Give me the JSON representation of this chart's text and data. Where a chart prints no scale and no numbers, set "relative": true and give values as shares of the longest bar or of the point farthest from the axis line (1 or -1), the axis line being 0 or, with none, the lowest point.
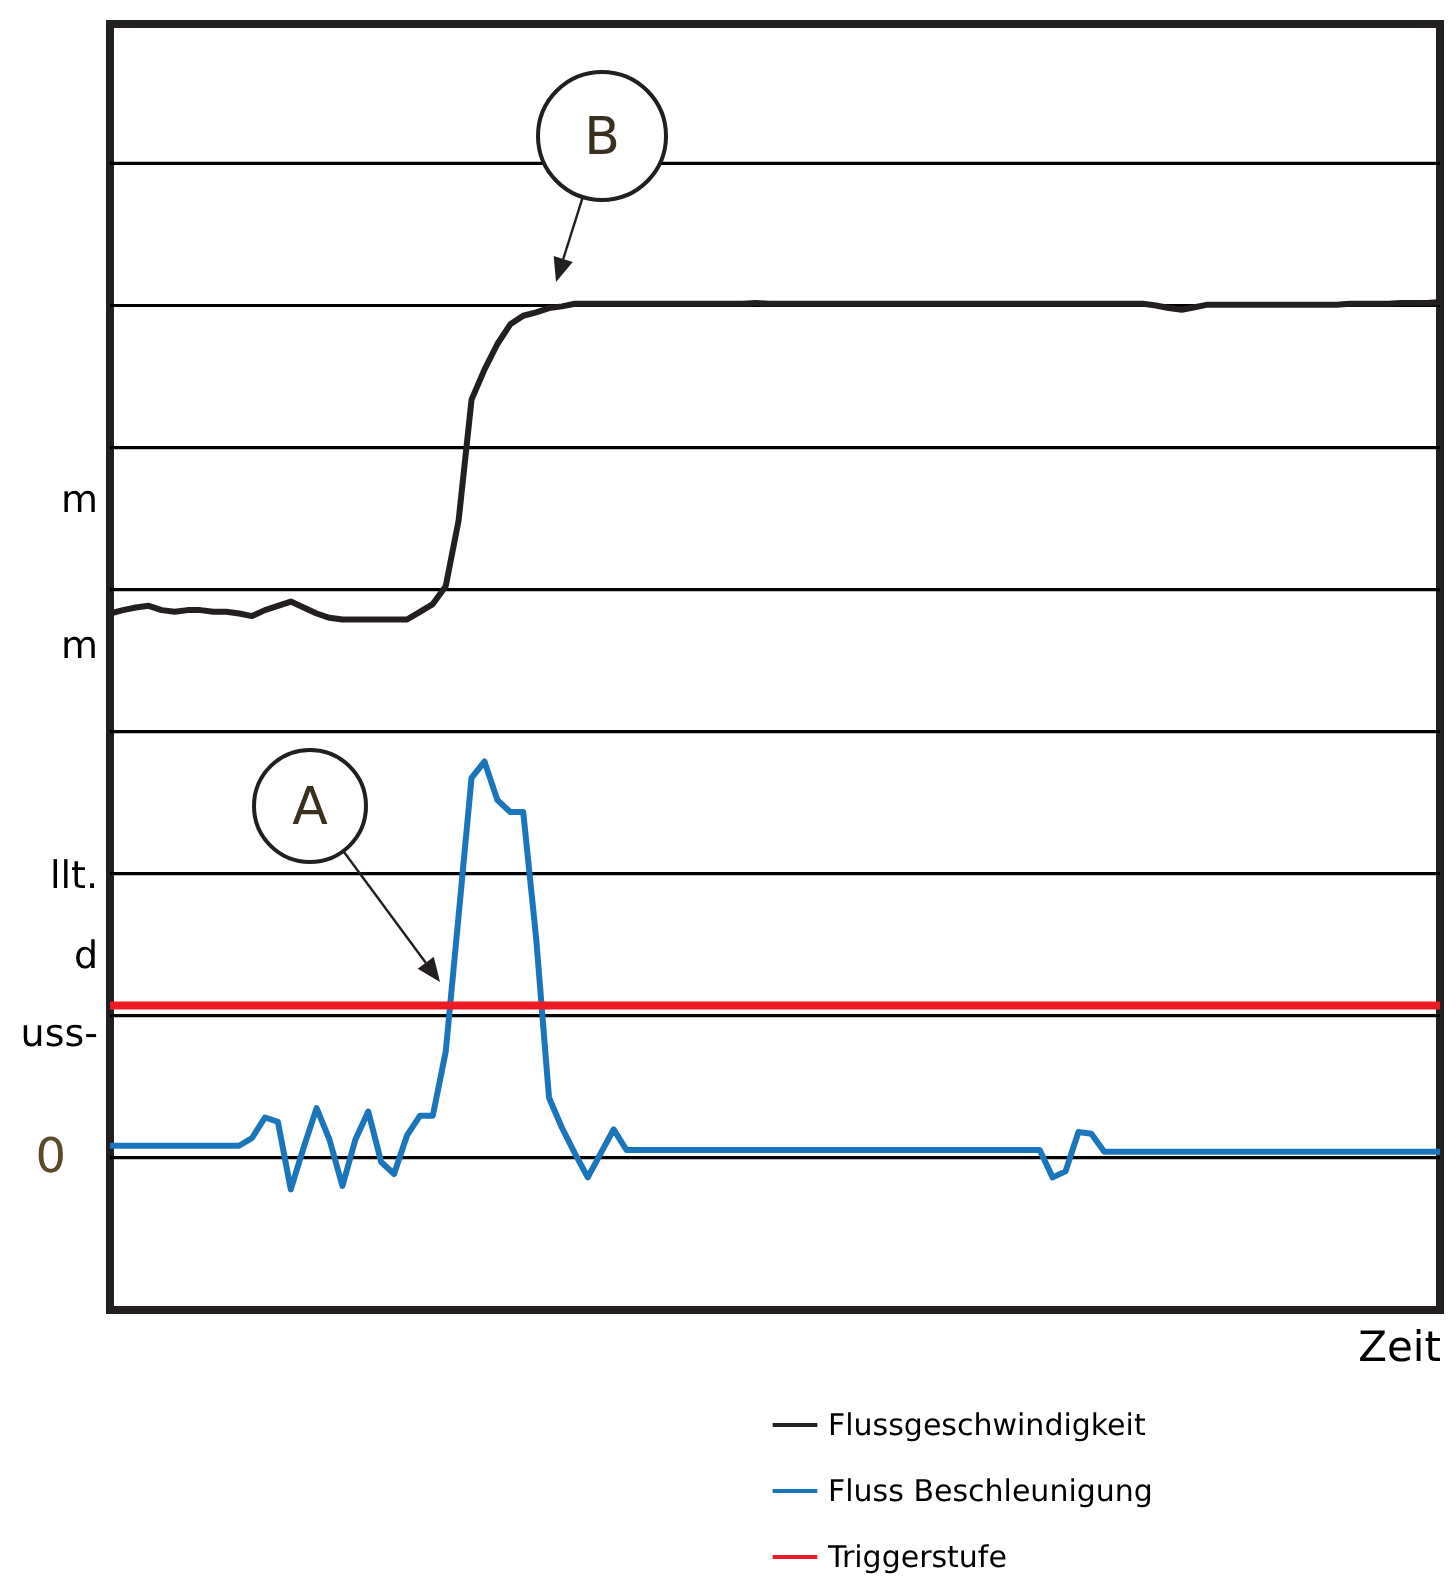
{
  "chart_data": {
    "type": "line",
    "relative": true,
    "xlabel": "Zeit",
    "categories": [
      null,
      null,
      null,
      null,
      null,
      null,
      null,
      null,
      null,
      null,
      null,
      null,
      null,
      null,
      null,
      null,
      null,
      null,
      null,
      null,
      null,
      null,
      null,
      null,
      null,
      null,
      null,
      null,
      null,
      null,
      null,
      null,
      null,
      null,
      null,
      null,
      null,
      null,
      null,
      null,
      null,
      null,
      null,
      null,
      null,
      null,
      null,
      null,
      null,
      null,
      null,
      null,
      null,
      null,
      null,
      null,
      null,
      null,
      null,
      null,
      null,
      null,
      null,
      null,
      null,
      null,
      null,
      null,
      null,
      null,
      null,
      null,
      null,
      null,
      null,
      null,
      null,
      null,
      null,
      null,
      null,
      null,
      null,
      null,
      null,
      null,
      null,
      null,
      null,
      null,
      null,
      null,
      null,
      null,
      null,
      null,
      null,
      null,
      null,
      null,
      null,
      null,
      null,
      null
    ],
    "series": [
      {
        "name": "Flussgeschwindigkeit",
        "color": "#231f20",
        "values": [
          0.636,
          0.64,
          0.643,
          0.645,
          0.64,
          0.638,
          0.64,
          0.64,
          0.638,
          0.638,
          0.636,
          0.633,
          0.64,
          0.645,
          0.65,
          0.643,
          0.636,
          0.631,
          0.629,
          0.629,
          0.629,
          0.629,
          0.629,
          0.629,
          0.638,
          0.647,
          0.668,
          0.745,
          0.886,
          0.921,
          0.951,
          0.974,
          0.984,
          0.988,
          0.993,
          0.995,
          0.998,
          0.998,
          0.998,
          0.998,
          0.998,
          0.998,
          0.998,
          0.998,
          0.998,
          0.998,
          0.998,
          0.998,
          0.998,
          0.998,
          0.999,
          0.998,
          0.998,
          0.998,
          0.998,
          0.998,
          0.998,
          0.998,
          0.998,
          0.998,
          0.998,
          0.998,
          0.998,
          0.998,
          0.998,
          0.998,
          0.998,
          0.998,
          0.998,
          0.998,
          0.998,
          0.998,
          0.998,
          0.998,
          0.998,
          0.998,
          0.998,
          0.998,
          0.998,
          0.998,
          0.998,
          0.996,
          0.993,
          0.991,
          0.994,
          0.997,
          0.997,
          0.997,
          0.997,
          0.997,
          0.997,
          0.997,
          0.997,
          0.997,
          0.997,
          0.997,
          0.998,
          0.998,
          0.998,
          0.998,
          0.999,
          0.999,
          0.999,
          1
        ]
      },
      {
        "name": "Fluss Beschleunigung",
        "color": "#1b75bb",
        "values": [
          0.014,
          0.014,
          0.014,
          0.014,
          0.014,
          0.014,
          0.014,
          0.014,
          0.014,
          0.014,
          0.014,
          0.023,
          0.047,
          0.042,
          -0.037,
          0.012,
          0.058,
          0.021,
          -0.033,
          0.021,
          0.054,
          -0.005,
          -0.019,
          0.026,
          0.049,
          0.049,
          0.124,
          0.283,
          0.444,
          0.463,
          0.418,
          0.404,
          0.404,
          0.257,
          0.07,
          0.035,
          0.005,
          -0.023,
          0.005,
          0.033,
          0.009,
          0.009,
          0.009,
          0.009,
          0.009,
          0.009,
          0.009,
          0.009,
          0.009,
          0.009,
          0.009,
          0.009,
          0.009,
          0.009,
          0.009,
          0.009,
          0.009,
          0.009,
          0.009,
          0.009,
          0.009,
          0.009,
          0.009,
          0.009,
          0.009,
          0.009,
          0.009,
          0.009,
          0.009,
          0.009,
          0.009,
          0.009,
          0.009,
          -0.023,
          -0.016,
          0.03,
          0.028,
          0.007,
          0.007,
          0.007,
          0.007,
          0.007,
          0.007,
          0.007,
          0.007,
          0.007,
          0.007,
          0.007,
          0.007,
          0.007,
          0.007,
          0.007,
          0.007,
          0.007,
          0.007,
          0.007,
          0.007,
          0.007,
          0.007,
          0.007,
          0.007,
          0.007,
          0.007,
          0.007
        ]
      }
    ],
    "ref_lines": [
      {
        "axis": "y",
        "value": 0.178,
        "label": "Triggerstufe",
        "color": "#ed1c24"
      }
    ],
    "annotations": [
      "m",
      "m",
      "llt.",
      "d",
      "uss-",
      "0",
      "A",
      "B"
    ],
    "grid": true,
    "legend": "bottom",
    "tick_labels": false,
    "line_style": "solid",
    "marker": "none"
  }
}
